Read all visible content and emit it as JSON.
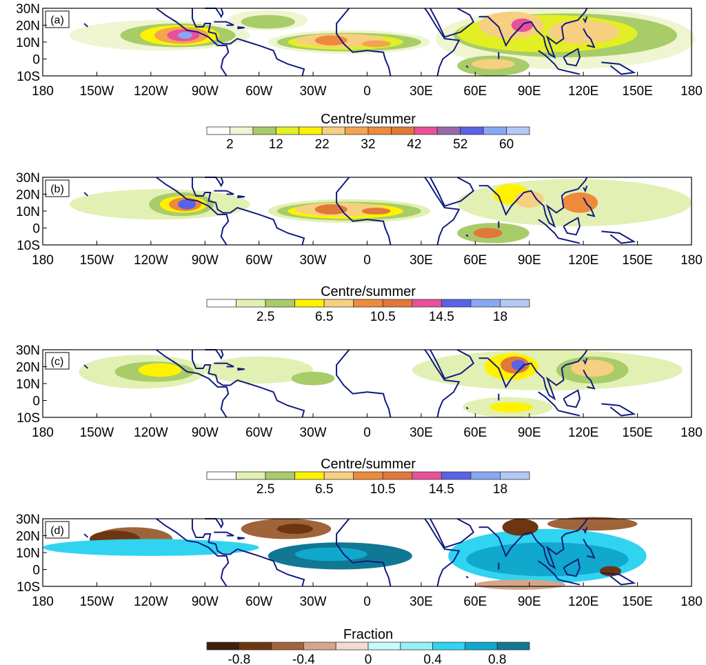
{
  "panels": [
    {
      "label": "(a)",
      "colorbar": "a"
    },
    {
      "label": "(b)",
      "colorbar": "b"
    },
    {
      "label": "(c)",
      "colorbar": "b"
    },
    {
      "label": "(d)",
      "colorbar": "d"
    }
  ],
  "lat_labels": [
    "30N",
    "20N",
    "10N",
    "0",
    "10S"
  ],
  "lon_labels": [
    "180",
    "150W",
    "120W",
    "90W",
    "60W",
    "30W",
    "0",
    "30E",
    "60E",
    "90E",
    "120E",
    "150E",
    "180"
  ],
  "colorbars": {
    "a": {
      "title": "Centre/summer",
      "labels": [
        "2",
        "12",
        "22",
        "32",
        "42",
        "52",
        "60"
      ],
      "label_boundaries": [
        1,
        3,
        5,
        7,
        9,
        11,
        13
      ],
      "colors": [
        "#ffffff",
        "#eef5d0",
        "#a8cc68",
        "#e2ef22",
        "#fff200",
        "#f7cf80",
        "#f2a453",
        "#ee8a3c",
        "#e07838",
        "#e8509a",
        "#9a68a8",
        "#5a62e6",
        "#88a8f6",
        "#b4c8f6"
      ]
    },
    "b": {
      "title": "Centre/summer",
      "labels": [
        "2.5",
        "6.5",
        "10.5",
        "14.5",
        "18"
      ],
      "label_boundaries": [
        2,
        4,
        6,
        8,
        10
      ],
      "colors": [
        "#ffffff",
        "#e2f0b4",
        "#a8cc68",
        "#fff200",
        "#f7cf80",
        "#ee8a3c",
        "#e07838",
        "#e8509a",
        "#5a62e6",
        "#88a8f6",
        "#b4c8f6"
      ]
    },
    "d": {
      "title": "Fraction",
      "labels": [
        "-0.8",
        "-0.4",
        "0",
        "0.4",
        "0.8"
      ],
      "label_boundaries": [
        1,
        3,
        5,
        7,
        9
      ],
      "colors": [
        "#3a1f0c",
        "#6e3610",
        "#a0643a",
        "#d4a68a",
        "#f2dcd0",
        "#c8fafa",
        "#96f0f6",
        "#30d4f0",
        "#10a8cc",
        "#107894"
      ]
    }
  }
}
